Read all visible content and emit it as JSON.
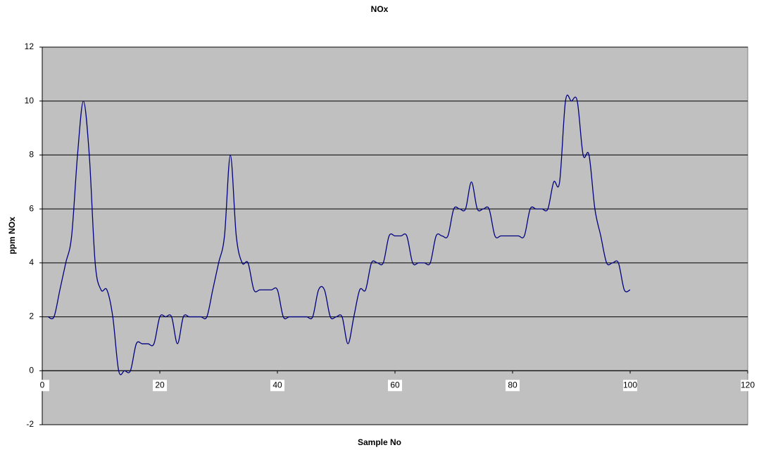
{
  "chart_data": {
    "type": "line",
    "title": "NOx",
    "x_label": "Sample No",
    "y_label": "ppm NOx",
    "x": [
      1,
      2,
      3,
      4,
      5,
      6,
      7,
      8,
      9,
      10,
      11,
      12,
      13,
      14,
      15,
      16,
      17,
      18,
      19,
      20,
      21,
      22,
      23,
      24,
      25,
      26,
      27,
      28,
      29,
      30,
      31,
      32,
      33,
      34,
      35,
      36,
      37,
      38,
      39,
      40,
      41,
      42,
      43,
      44,
      45,
      46,
      47,
      48,
      49,
      50,
      51,
      52,
      53,
      54,
      55,
      56,
      57,
      58,
      59,
      60,
      61,
      62,
      63,
      64,
      65,
      66,
      67,
      68,
      69,
      70,
      71,
      72,
      73,
      74,
      75,
      76,
      77,
      78,
      79,
      80,
      81,
      82,
      83,
      84,
      85,
      86,
      87,
      88,
      89,
      90,
      91,
      92,
      93,
      94,
      95,
      96,
      97,
      98,
      99,
      100
    ],
    "series": [
      {
        "name": "NOx",
        "color": "#000080",
        "values": [
          2,
          2,
          3,
          4,
          5,
          8,
          10,
          8,
          4,
          3,
          3,
          2,
          0,
          0,
          0,
          1,
          1,
          1,
          1,
          2,
          2,
          2,
          1,
          2,
          2,
          2,
          2,
          2,
          3,
          4,
          5,
          8,
          5,
          4,
          4,
          3,
          3,
          3,
          3,
          3,
          2,
          2,
          2,
          2,
          2,
          2,
          3,
          3,
          2,
          2,
          2,
          1,
          2,
          3,
          3,
          4,
          4,
          4,
          5,
          5,
          5,
          5,
          4,
          4,
          4,
          4,
          5,
          5,
          5,
          6,
          6,
          6,
          7,
          6,
          6,
          6,
          5,
          5,
          5,
          5,
          5,
          5,
          6,
          6,
          6,
          6,
          7,
          7,
          10,
          10,
          10,
          8,
          8,
          6,
          5,
          4,
          4,
          4,
          3,
          3
        ]
      }
    ],
    "xlim": [
      0,
      120
    ],
    "xticks": [
      0,
      20,
      40,
      60,
      80,
      100,
      120
    ],
    "ylim": [
      -2,
      12
    ],
    "yticks": [
      -2,
      0,
      2,
      4,
      6,
      8,
      10,
      12
    ],
    "grid": true,
    "plot_background": "#c0c0c0"
  }
}
